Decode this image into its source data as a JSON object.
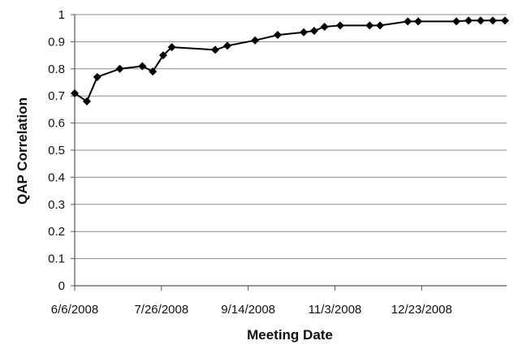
{
  "chart_data": {
    "type": "line",
    "xlabel": "Meeting Date",
    "ylabel": "QAP Correlation",
    "ylim": [
      0,
      1
    ],
    "y_ticks": [
      "0",
      "0.1",
      "0.2",
      "0.3",
      "0.4",
      "0.5",
      "0.6",
      "0.7",
      "0.8",
      "0.9",
      "1"
    ],
    "xlim": [
      "2008-06-06",
      "2009-02-10"
    ],
    "x_ticks": [
      {
        "date": "2008-06-06",
        "label": "6/6/2008"
      },
      {
        "date": "2008-07-26",
        "label": "7/26/2008"
      },
      {
        "date": "2008-09-14",
        "label": "9/14/2008"
      },
      {
        "date": "2008-11-03",
        "label": "11/3/2008"
      },
      {
        "date": "2008-12-23",
        "label": "12/23/2008"
      }
    ],
    "grid": "horizontal",
    "line_color": "#000000",
    "marker": "diamond",
    "series": [
      {
        "points": [
          {
            "x": "2008-06-06",
            "y": 0.71
          },
          {
            "x": "2008-06-13",
            "y": 0.68
          },
          {
            "x": "2008-06-19",
            "y": 0.77
          },
          {
            "x": "2008-07-02",
            "y": 0.8
          },
          {
            "x": "2008-07-15",
            "y": 0.81
          },
          {
            "x": "2008-07-21",
            "y": 0.79
          },
          {
            "x": "2008-07-27",
            "y": 0.85
          },
          {
            "x": "2008-08-01",
            "y": 0.88
          },
          {
            "x": "2008-08-26",
            "y": 0.87
          },
          {
            "x": "2008-09-02",
            "y": 0.885
          },
          {
            "x": "2008-09-18",
            "y": 0.905
          },
          {
            "x": "2008-10-01",
            "y": 0.925
          },
          {
            "x": "2008-10-16",
            "y": 0.935
          },
          {
            "x": "2008-10-22",
            "y": 0.94
          },
          {
            "x": "2008-10-28",
            "y": 0.955
          },
          {
            "x": "2008-11-06",
            "y": 0.96
          },
          {
            "x": "2008-11-23",
            "y": 0.96
          },
          {
            "x": "2008-11-29",
            "y": 0.96
          },
          {
            "x": "2008-12-15",
            "y": 0.975
          },
          {
            "x": "2008-12-21",
            "y": 0.975
          },
          {
            "x": "2009-01-12",
            "y": 0.975
          },
          {
            "x": "2009-01-19",
            "y": 0.978
          },
          {
            "x": "2009-01-26",
            "y": 0.978
          },
          {
            "x": "2009-02-02",
            "y": 0.978
          },
          {
            "x": "2009-02-09",
            "y": 0.978
          }
        ]
      }
    ]
  }
}
